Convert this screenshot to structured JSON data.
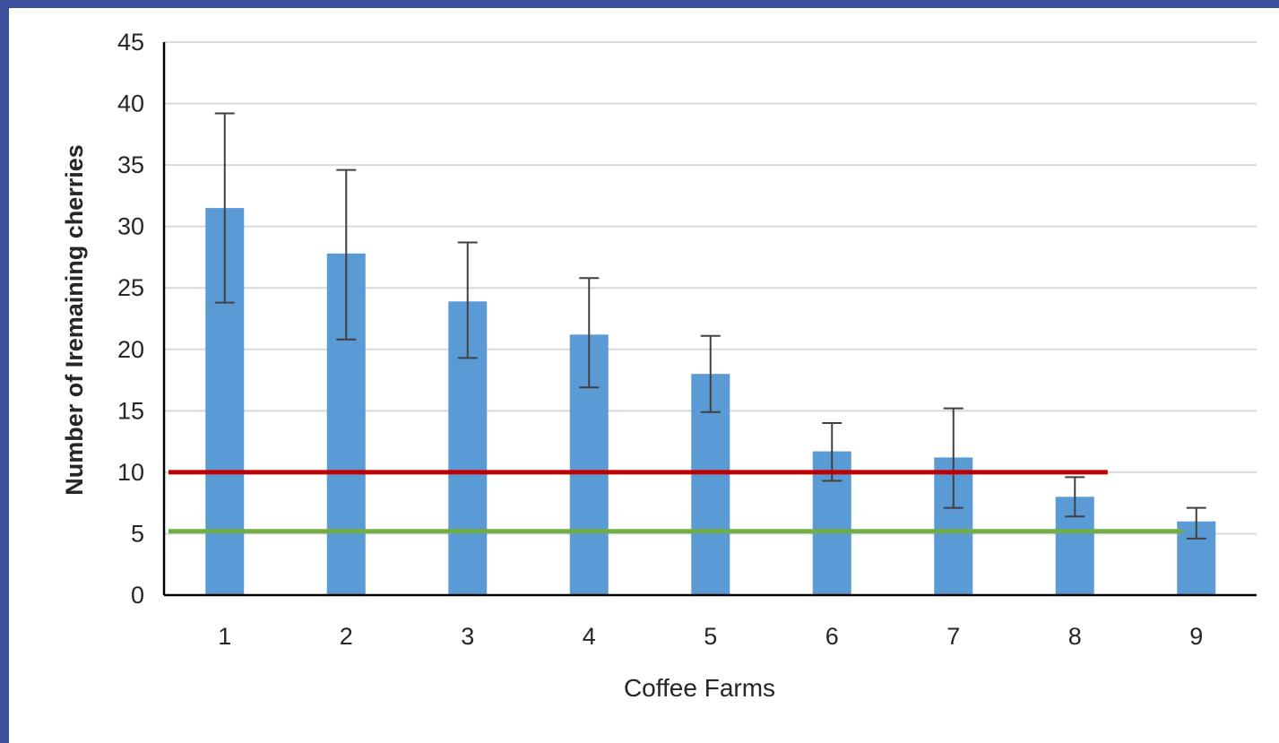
{
  "chart_data": {
    "type": "bar",
    "title": "",
    "xlabel": "Coffee Farms",
    "ylabel": "Number of Iremaining cherries",
    "categories": [
      "1",
      "2",
      "3",
      "4",
      "5",
      "6",
      "7",
      "8",
      "9"
    ],
    "values": [
      31.5,
      27.8,
      23.9,
      21.2,
      18.0,
      11.7,
      11.2,
      8.0,
      6.0
    ],
    "error_low": [
      23.8,
      20.8,
      19.3,
      16.9,
      14.9,
      9.3,
      7.1,
      6.4,
      4.6
    ],
    "error_high": [
      39.2,
      34.6,
      28.7,
      25.8,
      21.1,
      14.0,
      15.2,
      9.6,
      7.1
    ],
    "ylim": [
      0,
      45
    ],
    "yticks": [
      "0",
      "5",
      "10",
      "15",
      "20",
      "25",
      "30",
      "35",
      "40",
      "45"
    ],
    "grid": true,
    "bar_color": "#5b9bd5",
    "error_bar_color": "#404040",
    "reference_lines": [
      {
        "value": 10,
        "color": "#c00000",
        "to_category": 8,
        "to_fraction": 0.77
      },
      {
        "value": 5.2,
        "color": "#70ad47",
        "to_category": 8,
        "to_fraction": 1.39
      }
    ]
  }
}
